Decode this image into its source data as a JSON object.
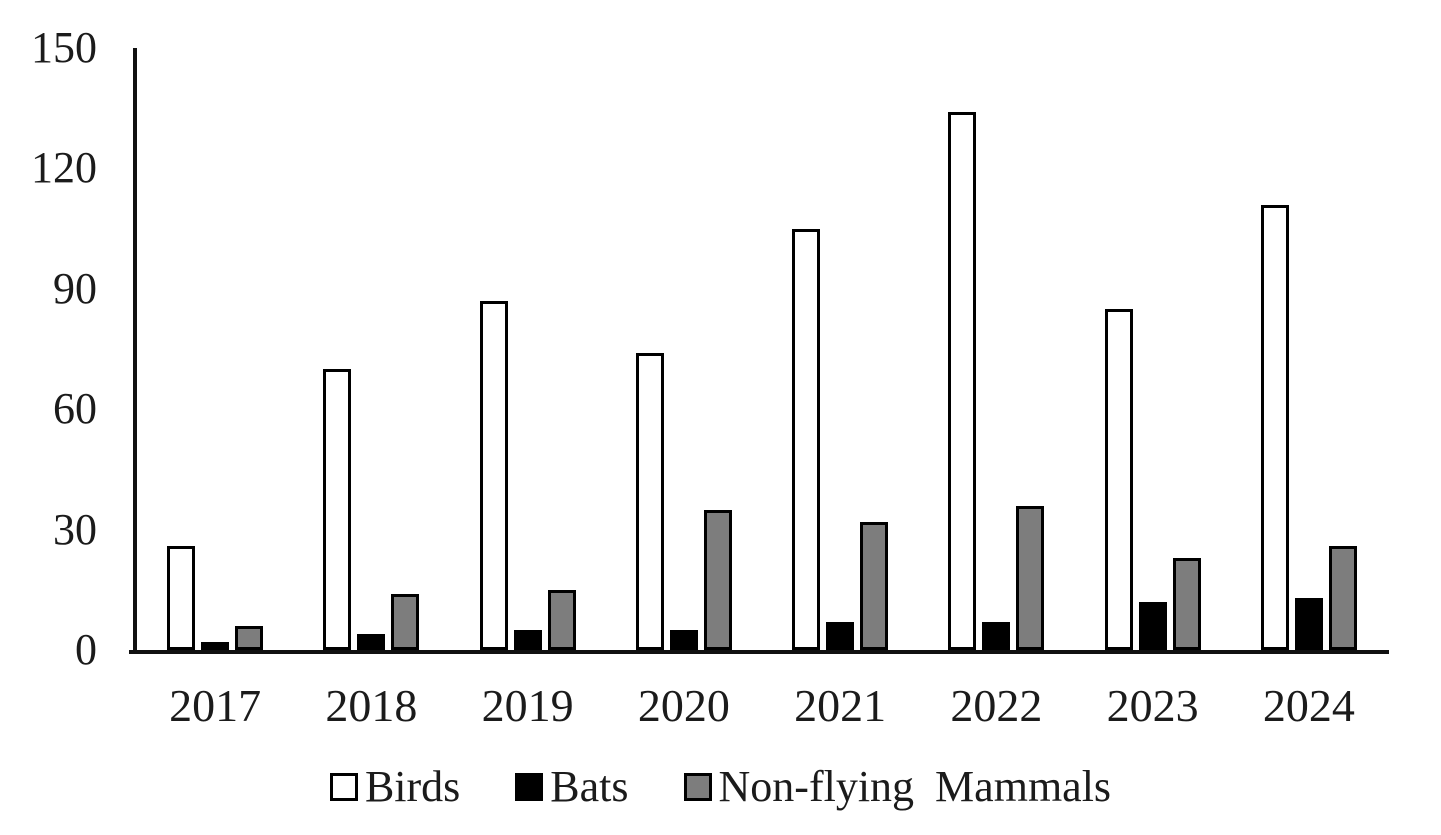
{
  "chart_data": {
    "type": "bar",
    "title": "",
    "xlabel": "",
    "ylabel": "",
    "categories": [
      "2017",
      "2018",
      "2019",
      "2020",
      "2021",
      "2022",
      "2023",
      "2024"
    ],
    "series": [
      {
        "name": "Birds",
        "fill": "#ffffff",
        "values": [
          26,
          70,
          87,
          74,
          105,
          134,
          85,
          111
        ]
      },
      {
        "name": "Bats",
        "fill": "#000000",
        "values": [
          2,
          4,
          5,
          5,
          7,
          7,
          12,
          13
        ]
      },
      {
        "name": "Non-flying Mammals",
        "fill": "#7d7d7d",
        "values": [
          6,
          14,
          15,
          35,
          32,
          36,
          23,
          26
        ]
      }
    ],
    "ylim": [
      0,
      150
    ],
    "yticks": [
      0,
      30,
      60,
      90,
      120,
      150
    ],
    "grid": false,
    "legend_position": "bottom",
    "bar_border_color": "#000000",
    "axis_color": "#111111"
  }
}
